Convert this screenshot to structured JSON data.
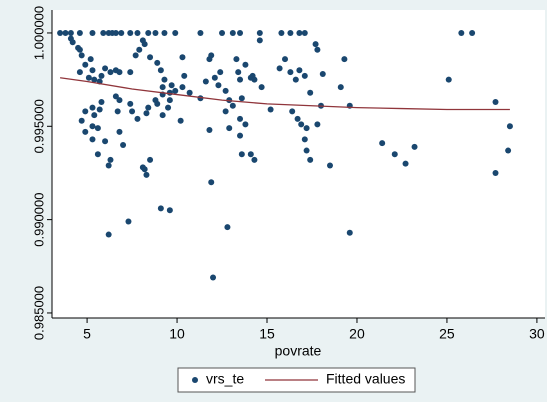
{
  "chart_data": {
    "type": "scatter",
    "x_label": "povrate",
    "xlim": [
      3.05,
      30.45
    ],
    "ylim": [
      0.98473,
      1.00123
    ],
    "xticks": [
      5,
      10,
      15,
      20,
      25,
      30
    ],
    "yticks": [
      {
        "value": 0.985,
        "label": "0.985000"
      },
      {
        "value": 0.99,
        "label": "0.990000"
      },
      {
        "value": 0.995,
        "label": "0.995000"
      },
      {
        "value": 1,
        "label": "1.000000"
      }
    ],
    "grid": false,
    "legend": "bottom",
    "series": [
      {
        "name": "vrs_te",
        "type": "scatter",
        "color": "#1a476f",
        "x": [
          3.5,
          3.8,
          4.1,
          4.6,
          5.3,
          5.9,
          6.2,
          6.4,
          6.6,
          6.9,
          7.4,
          7.8,
          8.4,
          8.8,
          9.3,
          9.9,
          11.3,
          12.5,
          13.1,
          13.5,
          14.6,
          15.8,
          16.3,
          16.8,
          17.1,
          25.8,
          26.4,
          4.1,
          4.2,
          4.5,
          4.6,
          4.7,
          5.2,
          4.9,
          5.3,
          4.6,
          5.1,
          5.4,
          5.7,
          5.8,
          6.0,
          6.3,
          6.6,
          6.8,
          7.4,
          7.7,
          7.9,
          8.1,
          8.2,
          8.5,
          8.9,
          9.1,
          9.3,
          9.2,
          9.6,
          9.7,
          9.9,
          10.3,
          10.3,
          10.4,
          10.7,
          11.3,
          11.6,
          11.8,
          11.9,
          12.1,
          12.3,
          12.4,
          12.7,
          12.9,
          13.1,
          13.3,
          13.4,
          13.5,
          13.6,
          13.8,
          14.1,
          14.2,
          14.3,
          14.6,
          14.7,
          15.2,
          15.7,
          16.0,
          16.3,
          16.6,
          16.8,
          17.1,
          17.4,
          17.7,
          17.8,
          18.1,
          18.0,
          19.1,
          19.3,
          19.6,
          25.1,
          27.7,
          28.5,
          28.4,
          27.7,
          21.4,
          22.1,
          22.7,
          23.2,
          19.6,
          4.7,
          5.3,
          4.9,
          5.6,
          5.3,
          6.0,
          5.6,
          6.3,
          6.8,
          6.2,
          7.0,
          8.1,
          8.2,
          8.3,
          8.5,
          7.3,
          6.2,
          9.1,
          9.6,
          11.9,
          12.0,
          12.8,
          13.5,
          13.8,
          13.6,
          14.1,
          14.3,
          17.1,
          17.2,
          17.4,
          18.5,
          11.8,
          10.2,
          12.7,
          12.9,
          13.5,
          16.4,
          16.7,
          16.9,
          17.2,
          17.8,
          7.5,
          7.8,
          8.3,
          8.9,
          9.2,
          9.5,
          8.4,
          8.8,
          9.2,
          9.6,
          6.6,
          6.8,
          5.8,
          5.3,
          5.7,
          4.9,
          5.4,
          6.7,
          7.4
        ],
        "values": [
          1,
          1,
          1,
          1,
          1,
          1,
          1,
          1,
          1,
          1,
          1,
          1,
          1,
          1,
          1,
          1,
          1,
          1,
          1,
          1,
          1,
          1,
          1,
          1,
          1,
          1,
          1,
          0.9997,
          0.9995,
          0.9992,
          0.9991,
          0.9988,
          0.9986,
          0.9983,
          0.998,
          0.9979,
          0.9976,
          0.9975,
          0.9974,
          0.9977,
          0.9981,
          0.9979,
          0.998,
          0.9979,
          0.9979,
          0.9988,
          0.9991,
          0.9996,
          0.9994,
          0.9987,
          0.9984,
          0.998,
          0.9975,
          0.9971,
          0.9968,
          0.9972,
          0.9969,
          0.9971,
          0.9987,
          0.9977,
          0.9968,
          0.9965,
          0.9974,
          0.9986,
          0.9988,
          0.9976,
          0.9972,
          0.9979,
          0.9969,
          0.9964,
          0.9961,
          0.9986,
          0.9979,
          0.9975,
          0.9965,
          0.9983,
          0.9976,
          0.9977,
          0.9975,
          0.9996,
          0.9971,
          0.9959,
          0.9981,
          0.9986,
          0.9979,
          0.9975,
          0.998,
          0.9977,
          0.9968,
          0.9994,
          0.9991,
          0.9978,
          0.9961,
          0.9971,
          0.9986,
          0.9961,
          0.9975,
          0.9963,
          0.995,
          0.9937,
          0.9925,
          0.9941,
          0.9935,
          0.993,
          0.9939,
          0.9893,
          0.9953,
          0.995,
          0.9947,
          0.9949,
          0.9943,
          0.9942,
          0.9935,
          0.9932,
          0.9947,
          0.9929,
          0.994,
          0.9928,
          0.9927,
          0.9924,
          0.9932,
          0.9899,
          0.9892,
          0.9906,
          0.9905,
          0.992,
          0.9869,
          0.9896,
          0.9945,
          0.9951,
          0.9935,
          0.9935,
          0.9932,
          0.9943,
          0.9937,
          0.9932,
          0.9929,
          0.9948,
          0.9953,
          0.9958,
          0.9949,
          0.9954,
          0.9958,
          0.9954,
          0.9951,
          0.9949,
          0.9951,
          0.9958,
          0.9954,
          0.9957,
          0.9962,
          0.9956,
          0.996,
          0.996,
          0.9964,
          0.9967,
          0.9964,
          0.9966,
          0.9964,
          0.9963,
          0.996,
          0.9959,
          0.9958,
          0.9956,
          0.9958,
          0.9962
        ]
      },
      {
        "name": "Fitted values",
        "type": "line",
        "color": "#90353b",
        "x": [
          3.5,
          5,
          7.5,
          10,
          12.5,
          15,
          17.5,
          20,
          22.5,
          25,
          28.5
        ],
        "values": [
          0.9976,
          0.9974,
          0.997,
          0.9967,
          0.9964,
          0.9962,
          0.9961,
          0.996,
          0.99595,
          0.9959,
          0.9959
        ]
      }
    ]
  }
}
